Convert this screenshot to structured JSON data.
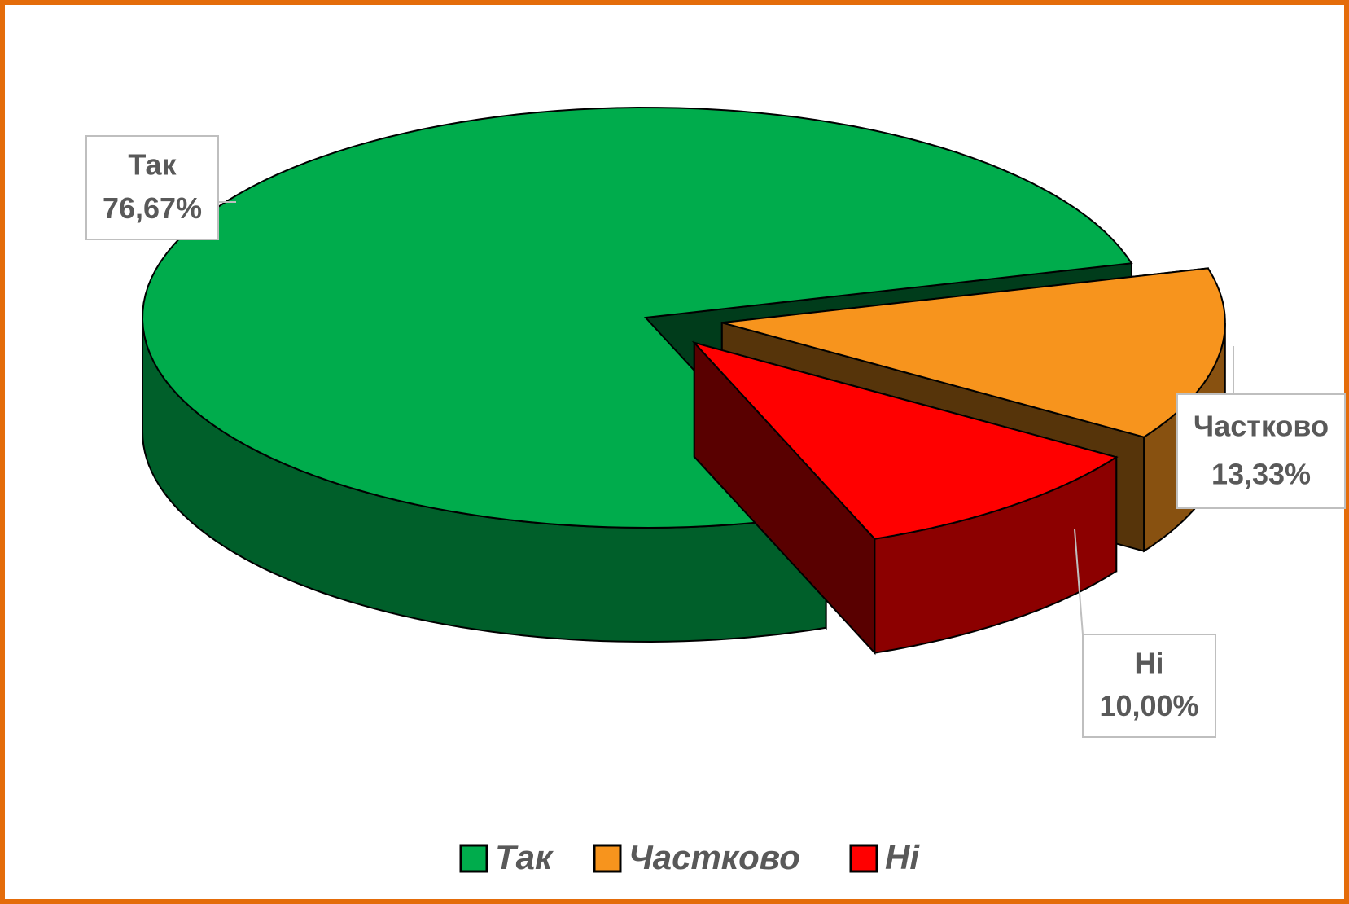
{
  "chart_data": {
    "type": "pie",
    "categories": [
      "Так",
      "Частково",
      "Ні"
    ],
    "values": [
      76.67,
      13.33,
      10.0
    ],
    "value_labels": [
      "76,67%",
      "13,33%",
      "10,00%"
    ],
    "colors": [
      "#00ac4c",
      "#f7941d",
      "#ff0000"
    ],
    "legend": "bottom"
  }
}
